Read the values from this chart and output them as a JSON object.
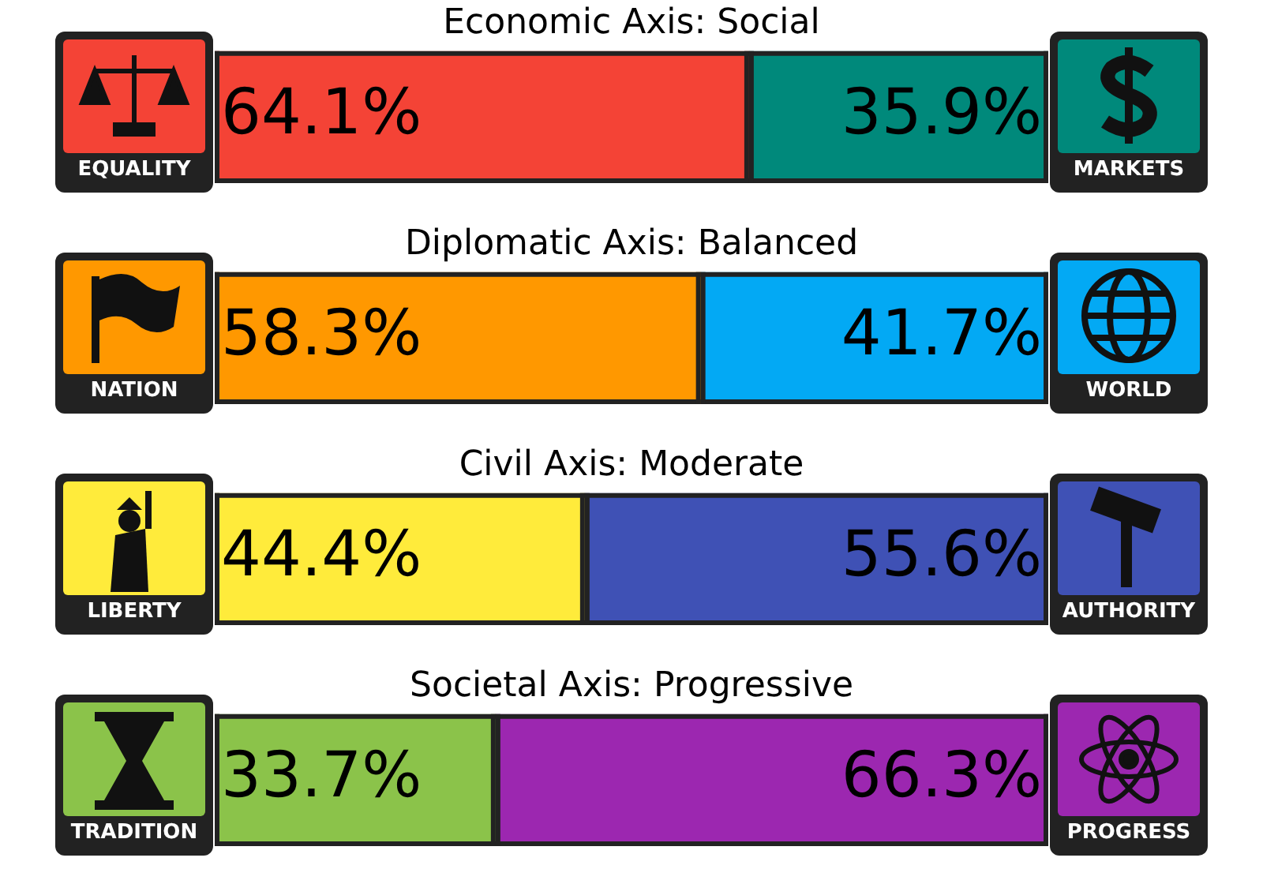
{
  "chart_data": [
    {
      "type": "bar",
      "orientation": "horizontal",
      "stacked": true,
      "title": "Economic Axis: Social",
      "categories": [
        null
      ],
      "xlim": [
        0,
        100
      ],
      "tick_labels": false,
      "series": [
        {
          "name": "EQUALITY",
          "color": "#f44336",
          "values": [
            64.1
          ],
          "value_labels": [
            "64.1%"
          ]
        },
        {
          "name": "MARKETS",
          "color": "#00897b",
          "values": [
            35.9
          ],
          "value_labels": [
            "35.9%"
          ]
        }
      ]
    },
    {
      "type": "bar",
      "orientation": "horizontal",
      "stacked": true,
      "title": "Diplomatic Axis: Balanced",
      "categories": [
        null
      ],
      "xlim": [
        0,
        100
      ],
      "tick_labels": false,
      "series": [
        {
          "name": "NATION",
          "color": "#ff9800",
          "values": [
            58.3
          ],
          "value_labels": [
            "58.3%"
          ]
        },
        {
          "name": "WORLD",
          "color": "#03a9f4",
          "values": [
            41.7
          ],
          "value_labels": [
            "41.7%"
          ]
        }
      ]
    },
    {
      "type": "bar",
      "orientation": "horizontal",
      "stacked": true,
      "title": "Civil Axis: Moderate",
      "categories": [
        null
      ],
      "xlim": [
        0,
        100
      ],
      "tick_labels": false,
      "series": [
        {
          "name": "LIBERTY",
          "color": "#ffeb3b",
          "values": [
            44.4
          ],
          "value_labels": [
            "44.4%"
          ]
        },
        {
          "name": "AUTHORITY",
          "color": "#3f51b5",
          "values": [
            55.6
          ],
          "value_labels": [
            "55.6%"
          ]
        }
      ]
    },
    {
      "type": "bar",
      "orientation": "horizontal",
      "stacked": true,
      "title": "Societal Axis: Progressive",
      "categories": [
        null
      ],
      "xlim": [
        0,
        100
      ],
      "tick_labels": false,
      "series": [
        {
          "name": "TRADITION",
          "color": "#8bc34a",
          "values": [
            33.7
          ],
          "value_labels": [
            "33.7%"
          ]
        },
        {
          "name": "PROGRESS",
          "color": "#9c27b0",
          "values": [
            66.3
          ],
          "value_labels": [
            "66.3%"
          ]
        }
      ]
    }
  ]
}
